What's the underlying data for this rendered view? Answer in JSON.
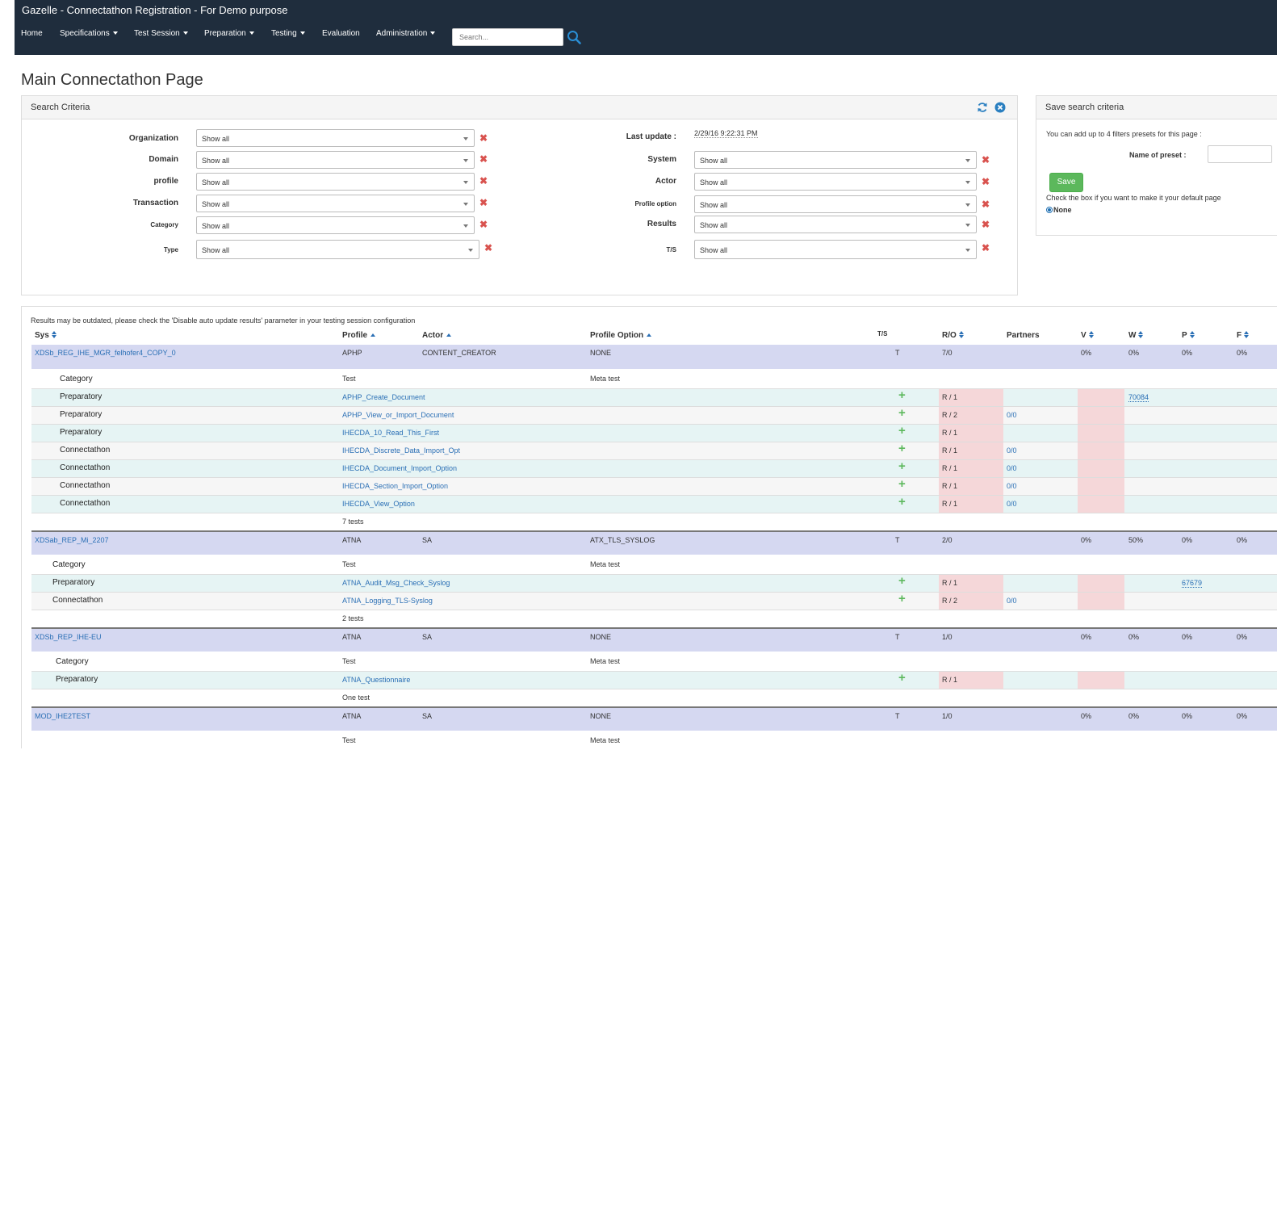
{
  "app": {
    "title": "Gazelle - Connectathon Registration - For Demo purpose"
  },
  "nav": {
    "items": [
      "Home",
      "Specifications",
      "Test Session",
      "Preparation",
      "Testing",
      "Evaluation",
      "Administration"
    ],
    "search_placeholder": "Search..."
  },
  "page": {
    "title": "Main Connectathon Page"
  },
  "search": {
    "heading": "Search Criteria",
    "left_filters": [
      {
        "label": "Organization",
        "value": "Show all"
      },
      {
        "label": "Domain",
        "value": "Show all"
      },
      {
        "label": "profile",
        "value": "Show all"
      },
      {
        "label": "Transaction",
        "value": "Show all"
      },
      {
        "label": "Category",
        "value": "Show all"
      },
      {
        "label": "Type",
        "value": "Show all"
      }
    ],
    "last_update_label": "Last update :",
    "last_update_value": "2/29/16 9:22:31 PM",
    "right_filters": [
      {
        "label": "System",
        "value": "Show all"
      },
      {
        "label": "Actor",
        "value": "Show all"
      },
      {
        "label": "Profile option",
        "value": "Show all"
      },
      {
        "label": "Results",
        "value": "Show all"
      },
      {
        "label": "T/S",
        "value": "Show all"
      }
    ],
    "clear_glyph": "✖"
  },
  "save_panel": {
    "heading": "Save search criteria",
    "hint": "You can add up to 4 filters presets for this page :",
    "preset_label": "Name of preset :",
    "save_label": "Save",
    "default_hint": "Check the box if you want to make it your default page",
    "radio_label": "None"
  },
  "results": {
    "notice": "Results may be outdated, please check the 'Disable auto update results' parameter in your testing session configuration",
    "headers": {
      "sys": "Sys",
      "profile": "Profile",
      "actor": "Actor",
      "option": "Profile Option",
      "ts": "T/S",
      "ro": "R/O",
      "partners": "Partners",
      "v": "V",
      "w": "W",
      "p": "P",
      "f": "F"
    },
    "groups": [
      {
        "sys": "XDSb_REG_IHE_MGR_felhofer4_COPY_0",
        "profile": "APHP",
        "actor": "CONTENT_CREATOR",
        "option": "NONE",
        "ts": "T",
        "ro": "7/0",
        "v": "0%",
        "w": "0%",
        "p": "0%",
        "f": "0%",
        "cat_header": {
          "category": "Category",
          "test": "Test",
          "meta": "Meta test"
        },
        "tests": [
          {
            "category": "Preparatory",
            "name": "APHP_Create_Document",
            "ro": "R / 1",
            "partners": "",
            "w_link": "70084",
            "p_link": ""
          },
          {
            "category": "Preparatory",
            "name": "APHP_View_or_Import_Document",
            "ro": "R / 2",
            "partners": "0/0",
            "w_link": "",
            "p_link": ""
          },
          {
            "category": "Preparatory",
            "name": "IHECDA_10_Read_This_First",
            "ro": "R / 1",
            "partners": "",
            "w_link": "",
            "p_link": ""
          },
          {
            "category": "Connectathon",
            "name": "IHECDA_Discrete_Data_Import_Opt",
            "ro": "R / 1",
            "partners": "0/0",
            "w_link": "",
            "p_link": ""
          },
          {
            "category": "Connectathon",
            "name": "IHECDA_Document_Import_Option",
            "ro": "R / 1",
            "partners": "0/0",
            "w_link": "",
            "p_link": ""
          },
          {
            "category": "Connectathon",
            "name": "IHECDA_Section_Import_Option",
            "ro": "R / 1",
            "partners": "0/0",
            "w_link": "",
            "p_link": ""
          },
          {
            "category": "Connectathon",
            "name": "IHECDA_View_Option",
            "ro": "R / 1",
            "partners": "0/0",
            "w_link": "",
            "p_link": ""
          }
        ],
        "count": "7 tests"
      },
      {
        "sys": "XDSab_REP_Mi_2207",
        "profile": "ATNA",
        "actor": "SA",
        "option": "ATX_TLS_SYSLOG",
        "ts": "T",
        "ro": "2/0",
        "v": "0%",
        "w": "50%",
        "p": "0%",
        "f": "0%",
        "cat_header": {
          "category": "Category",
          "test": "Test",
          "meta": "Meta test"
        },
        "tests": [
          {
            "category": "Preparatory",
            "name": "ATNA_Audit_Msg_Check_Syslog",
            "ro": "R / 1",
            "partners": "",
            "w_link": "",
            "p_link": "67679"
          },
          {
            "category": "Connectathon",
            "name": "ATNA_Logging_TLS-Syslog",
            "ro": "R / 2",
            "partners": "0/0",
            "w_link": "",
            "p_link": ""
          }
        ],
        "count": "2 tests"
      },
      {
        "sys": "XDSb_REP_IHE-EU",
        "profile": "ATNA",
        "actor": "SA",
        "option": "NONE",
        "ts": "T",
        "ro": "1/0",
        "v": "0%",
        "w": "0%",
        "p": "0%",
        "f": "0%",
        "cat_header": {
          "category": "Category",
          "test": "Test",
          "meta": "Meta test"
        },
        "tests": [
          {
            "category": "Preparatory",
            "name": "ATNA_Questionnaire",
            "ro": "R / 1",
            "partners": "",
            "w_link": "",
            "p_link": ""
          }
        ],
        "count": "One test"
      },
      {
        "sys": "MOD_IHE2TEST",
        "profile": "ATNA",
        "actor": "SA",
        "option": "NONE",
        "ts": "T",
        "ro": "1/0",
        "v": "0%",
        "w": "0%",
        "p": "0%",
        "f": "0%",
        "cat_header": {
          "category": "",
          "test": "Test",
          "meta": "Meta test"
        },
        "tests": [],
        "count": ""
      }
    ],
    "plus_glyph": "+"
  },
  "icons": {
    "refresh": "refresh-icon",
    "close": "close-circle-icon",
    "search": "search-icon"
  },
  "colors": {
    "navbar": "#1f2d3d",
    "system_row": "#d5d8f1",
    "test_row": "#e6f4f4",
    "pink": "#f5d7d9",
    "link": "#2a6fb5",
    "save": "#5cb85c",
    "clear": "#d9534f"
  }
}
